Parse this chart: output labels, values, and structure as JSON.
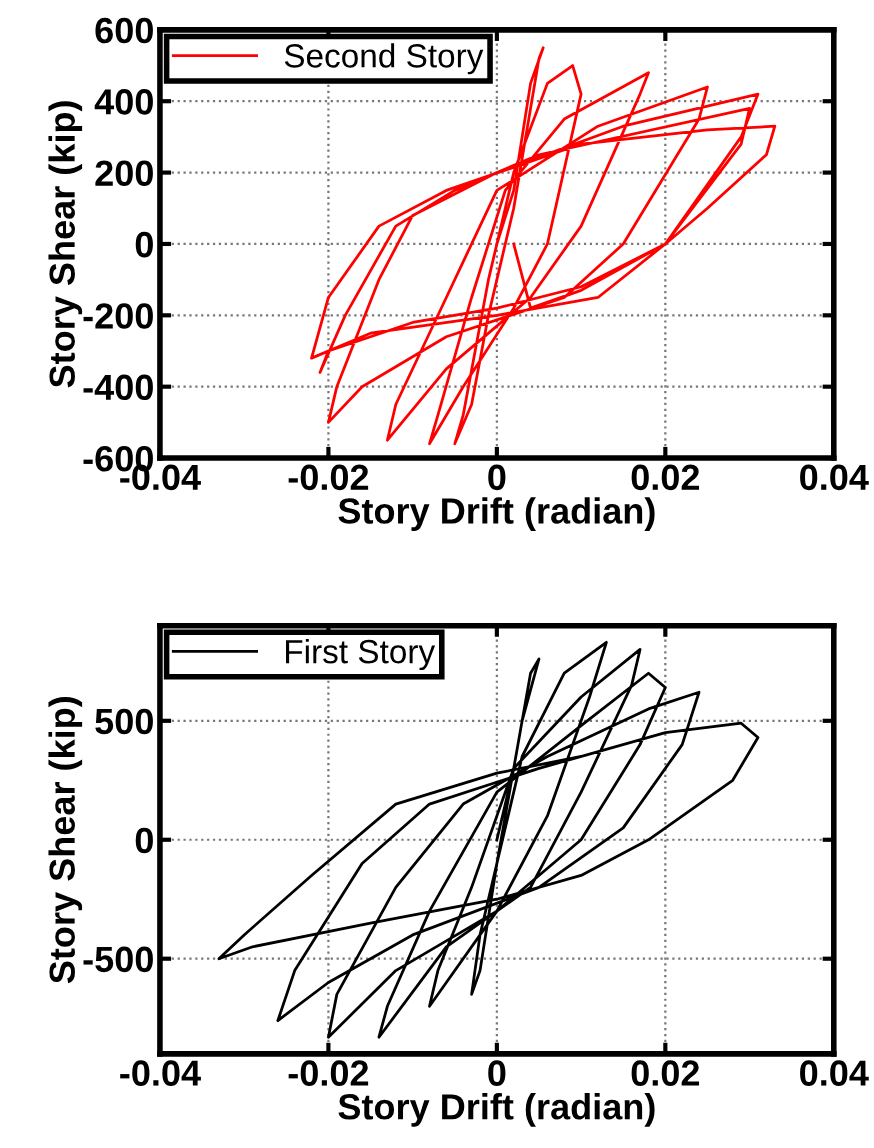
{
  "chart_data": [
    {
      "type": "line",
      "xlabel": "Story Drift (radian)",
      "ylabel": "Story Shear (kip)",
      "xlim": [
        -0.04,
        0.04
      ],
      "ylim": [
        -600,
        600
      ],
      "xticks": [
        -0.04,
        -0.02,
        0,
        0.02,
        0.04
      ],
      "yticks": [
        -600,
        -400,
        -200,
        0,
        200,
        400,
        600
      ],
      "grid": true,
      "legend": "top left",
      "line_style": "solid",
      "marker": "none",
      "series": [
        {
          "name": "Second Story",
          "color": "#ff0000",
          "x": [
            0,
            0.002,
            0.004,
            0.0055,
            0.005,
            0.002,
            -0.001,
            -0.003,
            -0.005,
            -0.004,
            -0.001,
            0.002,
            0.006,
            0.009,
            0.01,
            0.006,
            0.002,
            -0.004,
            -0.008,
            -0.007,
            -0.003,
            0.001,
            0.008,
            0.018,
            0.017,
            0.01,
            0.004,
            -0.006,
            -0.013,
            -0.012,
            -0.006,
            0,
            0.012,
            0.025,
            0.024,
            0.015,
            0.008,
            -0.006,
            -0.016,
            -0.02,
            -0.019,
            -0.014,
            -0.01,
            0,
            0.015,
            0.031,
            0.029,
            0.02,
            0.012,
            0,
            -0.015,
            -0.022,
            -0.02,
            -0.014,
            -0.006,
            0.01,
            0.025,
            0.033,
            0.032,
            0.025,
            0.02,
            0.01,
            0,
            -0.01,
            -0.02,
            -0.021,
            -0.018,
            -0.012,
            -0.005,
            0.005,
            0.03,
            0.029,
            0.02,
            0.01,
            0.004,
            0.002
          ],
          "values": [
            0,
            150,
            450,
            550,
            520,
            100,
            -200,
            -450,
            -560,
            -480,
            -100,
            200,
            450,
            500,
            420,
            0,
            -180,
            -400,
            -560,
            -480,
            -150,
            150,
            350,
            480,
            420,
            50,
            -150,
            -350,
            -550,
            -450,
            -150,
            150,
            330,
            440,
            350,
            0,
            -150,
            -260,
            -400,
            -500,
            -400,
            -100,
            80,
            200,
            330,
            420,
            300,
            0,
            -150,
            -200,
            -250,
            -320,
            -150,
            50,
            150,
            280,
            320,
            330,
            250,
            100,
            0,
            -120,
            -180,
            -220,
            -300,
            -360,
            -200,
            50,
            150,
            250,
            380,
            280,
            0,
            -130,
            -180,
            0
          ]
        }
      ]
    },
    {
      "type": "line",
      "xlabel": "Story Drift (radian)",
      "ylabel": "Story Shear (kip)",
      "xlim": [
        -0.04,
        0.04
      ],
      "ylim": [
        -900,
        900
      ],
      "xticks": [
        -0.04,
        -0.02,
        0,
        0.02,
        0.04
      ],
      "yticks": [
        -500,
        0,
        500
      ],
      "grid": true,
      "legend": "top left",
      "line_style": "solid",
      "marker": "none",
      "series": [
        {
          "name": "First Story",
          "color": "#000000",
          "x": [
            0,
            0.002,
            0.004,
            0.005,
            0.003,
            0,
            -0.002,
            -0.003,
            -0.002,
            0,
            0.003,
            0.008,
            0.013,
            0.011,
            0.006,
            0,
            -0.006,
            -0.008,
            -0.007,
            -0.003,
            0.002,
            0.01,
            0.017,
            0.016,
            0.01,
            0.004,
            -0.006,
            -0.014,
            -0.013,
            -0.008,
            0,
            0.01,
            0.018,
            0.02,
            0.017,
            0.01,
            0,
            -0.012,
            -0.02,
            -0.019,
            -0.012,
            -0.004,
            0.006,
            0.018,
            0.024,
            0.022,
            0.015,
            0.005,
            -0.01,
            -0.02,
            -0.026,
            -0.024,
            -0.016,
            -0.008,
            0.005,
            0.02,
            0.029,
            0.031,
            0.028,
            0.018,
            0.01,
            0,
            -0.015,
            -0.029,
            -0.033,
            -0.03,
            -0.022,
            -0.012,
            0,
            0.01
          ],
          "values": [
            0,
            300,
            700,
            760,
            500,
            -100,
            -400,
            -650,
            -550,
            -100,
            350,
            700,
            830,
            600,
            100,
            -300,
            -600,
            -700,
            -550,
            -200,
            300,
            600,
            800,
            650,
            200,
            -200,
            -450,
            -830,
            -700,
            -300,
            200,
            480,
            700,
            640,
            400,
            0,
            -300,
            -550,
            -830,
            -650,
            -200,
            150,
            350,
            550,
            620,
            400,
            50,
            -200,
            -400,
            -600,
            -760,
            -550,
            -100,
            150,
            300,
            450,
            490,
            430,
            250,
            0,
            -150,
            -250,
            -350,
            -450,
            -500,
            -400,
            -150,
            150,
            280,
            350
          ]
        }
      ]
    }
  ]
}
